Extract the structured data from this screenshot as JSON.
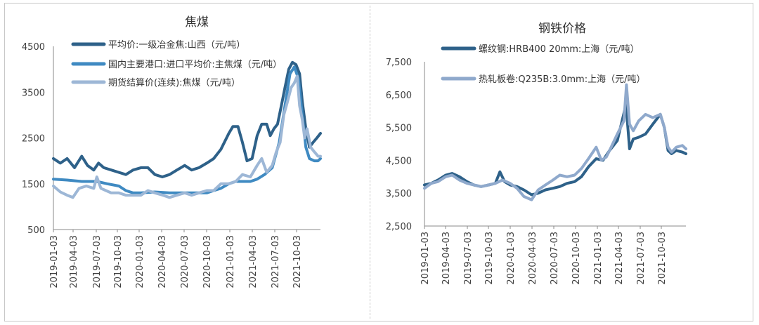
{
  "chart_data": [
    {
      "type": "line",
      "title": "焦煤",
      "ylim": [
        500,
        4500
      ],
      "y_ticks": [
        "4500",
        "3500",
        "2500",
        "1500",
        "500"
      ],
      "x_ticks": [
        "2019-01-03",
        "2019-04-03",
        "2019-07-03",
        "2019-10-03",
        "2020-01-03",
        "2020-04-03",
        "2020-07-03",
        "2020-10-03",
        "2021-01-03",
        "2021-04-03",
        "2021-07-03",
        "2021-10-03"
      ],
      "x_range": [
        "2019-01-03",
        "2022-01-20"
      ],
      "legend_position": "top-left",
      "series": [
        {
          "name": "平均价:一级冶金焦:山西（元/吨）",
          "color": "#2e6189",
          "points": [
            [
              "2019-01-03",
              2050
            ],
            [
              "2019-02-01",
              1950
            ],
            [
              "2019-03-01",
              2050
            ],
            [
              "2019-04-01",
              1850
            ],
            [
              "2019-05-01",
              2100
            ],
            [
              "2019-05-25",
              1900
            ],
            [
              "2019-06-20",
              1800
            ],
            [
              "2019-07-10",
              1950
            ],
            [
              "2019-08-01",
              1850
            ],
            [
              "2019-09-01",
              1800
            ],
            [
              "2019-10-01",
              1750
            ],
            [
              "2019-11-01",
              1700
            ],
            [
              "2019-12-01",
              1800
            ],
            [
              "2020-01-03",
              1850
            ],
            [
              "2020-02-01",
              1850
            ],
            [
              "2020-03-01",
              1700
            ],
            [
              "2020-04-01",
              1650
            ],
            [
              "2020-05-01",
              1700
            ],
            [
              "2020-06-01",
              1800
            ],
            [
              "2020-07-03",
              1900
            ],
            [
              "2020-08-01",
              1800
            ],
            [
              "2020-09-01",
              1850
            ],
            [
              "2020-10-03",
              1950
            ],
            [
              "2020-11-01",
              2050
            ],
            [
              "2020-12-01",
              2250
            ],
            [
              "2021-01-03",
              2600
            ],
            [
              "2021-01-20",
              2750
            ],
            [
              "2021-02-10",
              2750
            ],
            [
              "2021-03-01",
              2400
            ],
            [
              "2021-03-20",
              2000
            ],
            [
              "2021-04-10",
              2050
            ],
            [
              "2021-05-01",
              2550
            ],
            [
              "2021-05-20",
              2800
            ],
            [
              "2021-06-10",
              2800
            ],
            [
              "2021-06-25",
              2550
            ],
            [
              "2021-07-10",
              2700
            ],
            [
              "2021-07-25",
              2800
            ],
            [
              "2021-08-10",
              3200
            ],
            [
              "2021-08-25",
              3600
            ],
            [
              "2021-09-10",
              4000
            ],
            [
              "2021-09-25",
              4150
            ],
            [
              "2021-10-10",
              4100
            ],
            [
              "2021-10-25",
              3900
            ],
            [
              "2021-11-05",
              3300
            ],
            [
              "2021-11-20",
              2700
            ],
            [
              "2021-12-05",
              2300
            ],
            [
              "2021-12-20",
              2400
            ],
            [
              "2022-01-05",
              2500
            ],
            [
              "2022-01-20",
              2600
            ]
          ]
        },
        {
          "name": "国内主要港口:进口平均价:主焦煤（元/吨）",
          "color": "#3f8ac2",
          "points": [
            [
              "2019-01-03",
              1600
            ],
            [
              "2019-03-01",
              1580
            ],
            [
              "2019-05-01",
              1550
            ],
            [
              "2019-07-03",
              1550
            ],
            [
              "2019-08-15",
              1500
            ],
            [
              "2019-10-03",
              1450
            ],
            [
              "2019-11-01",
              1350
            ],
            [
              "2019-12-01",
              1300
            ],
            [
              "2020-01-03",
              1300
            ],
            [
              "2020-03-01",
              1320
            ],
            [
              "2020-05-01",
              1300
            ],
            [
              "2020-07-03",
              1300
            ],
            [
              "2020-09-01",
              1300
            ],
            [
              "2020-10-03",
              1300
            ],
            [
              "2020-11-01",
              1350
            ],
            [
              "2020-12-01",
              1400
            ],
            [
              "2021-01-03",
              1500
            ],
            [
              "2021-02-01",
              1550
            ],
            [
              "2021-03-01",
              1550
            ],
            [
              "2021-04-03",
              1550
            ],
            [
              "2021-05-01",
              1600
            ],
            [
              "2021-06-01",
              1700
            ],
            [
              "2021-07-03",
              1850
            ],
            [
              "2021-08-01",
              2400
            ],
            [
              "2021-08-25",
              3200
            ],
            [
              "2021-09-15",
              3900
            ],
            [
              "2021-10-03",
              4050
            ],
            [
              "2021-10-20",
              3800
            ],
            [
              "2021-11-05",
              3000
            ],
            [
              "2021-11-20",
              2300
            ],
            [
              "2021-12-05",
              2050
            ],
            [
              "2021-12-25",
              2000
            ],
            [
              "2022-01-10",
              2000
            ],
            [
              "2022-01-20",
              2050
            ]
          ]
        },
        {
          "name": "期货结算价(连续):焦煤（元/吨）",
          "color": "#9db7d6",
          "points": [
            [
              "2019-01-03",
              1450
            ],
            [
              "2019-02-01",
              1320
            ],
            [
              "2019-03-01",
              1250
            ],
            [
              "2019-03-25",
              1200
            ],
            [
              "2019-04-20",
              1400
            ],
            [
              "2019-05-20",
              1450
            ],
            [
              "2019-06-20",
              1400
            ],
            [
              "2019-07-03",
              1650
            ],
            [
              "2019-07-20",
              1400
            ],
            [
              "2019-08-10",
              1350
            ],
            [
              "2019-09-01",
              1300
            ],
            [
              "2019-10-03",
              1300
            ],
            [
              "2019-11-01",
              1250
            ],
            [
              "2019-12-01",
              1250
            ],
            [
              "2020-01-03",
              1250
            ],
            [
              "2020-02-01",
              1350
            ],
            [
              "2020-03-01",
              1300
            ],
            [
              "2020-04-03",
              1250
            ],
            [
              "2020-05-01",
              1200
            ],
            [
              "2020-06-01",
              1250
            ],
            [
              "2020-07-03",
              1300
            ],
            [
              "2020-08-01",
              1250
            ],
            [
              "2020-09-01",
              1300
            ],
            [
              "2020-10-03",
              1350
            ],
            [
              "2020-11-01",
              1350
            ],
            [
              "2020-12-01",
              1500
            ],
            [
              "2021-01-03",
              1500
            ],
            [
              "2021-02-01",
              1550
            ],
            [
              "2021-03-01",
              1700
            ],
            [
              "2021-04-03",
              1650
            ],
            [
              "2021-05-01",
              1900
            ],
            [
              "2021-05-20",
              2050
            ],
            [
              "2021-06-10",
              1750
            ],
            [
              "2021-07-03",
              1900
            ],
            [
              "2021-07-20",
              2200
            ],
            [
              "2021-08-05",
              2400
            ],
            [
              "2021-08-20",
              3000
            ],
            [
              "2021-09-05",
              3300
            ],
            [
              "2021-09-20",
              3600
            ],
            [
              "2021-10-03",
              3700
            ],
            [
              "2021-10-15",
              3850
            ],
            [
              "2021-10-25",
              3200
            ],
            [
              "2021-11-05",
              2900
            ],
            [
              "2021-11-15",
              2500
            ],
            [
              "2021-11-25",
              2700
            ],
            [
              "2021-12-10",
              2300
            ],
            [
              "2021-12-25",
              2200
            ],
            [
              "2022-01-10",
              2100
            ],
            [
              "2022-01-20",
              2100
            ]
          ]
        }
      ]
    },
    {
      "type": "line",
      "title": "钢铁价格",
      "ylim": [
        2500,
        7500
      ],
      "y_ticks": [
        "7,500",
        "6,500",
        "5,500",
        "4,500",
        "3,500",
        "2,500"
      ],
      "x_ticks": [
        "2019-01-03",
        "2019-04-03",
        "2019-07-03",
        "2019-10-03",
        "2020-01-03",
        "2020-04-03",
        "2020-07-03",
        "2020-10-03",
        "2021-01-03",
        "2021-04-03",
        "2021-07-03",
        "2021-10-03"
      ],
      "x_range": [
        "2019-01-03",
        "2022-01-20"
      ],
      "legend_position": "top-left",
      "series": [
        {
          "name": "螺纹钢:HRB400 20mm:上海（元/吨）",
          "color": "#2e6189",
          "points": [
            [
              "2019-01-03",
              3750
            ],
            [
              "2019-02-01",
              3800
            ],
            [
              "2019-03-01",
              3900
            ],
            [
              "2019-04-03",
              4050
            ],
            [
              "2019-05-01",
              4100
            ],
            [
              "2019-06-01",
              4000
            ],
            [
              "2019-07-03",
              3850
            ],
            [
              "2019-08-01",
              3750
            ],
            [
              "2019-09-01",
              3700
            ],
            [
              "2019-10-03",
              3750
            ],
            [
              "2019-11-01",
              3800
            ],
            [
              "2019-11-20",
              4150
            ],
            [
              "2019-12-10",
              3850
            ],
            [
              "2020-01-03",
              3750
            ],
            [
              "2020-02-01",
              3700
            ],
            [
              "2020-03-01",
              3600
            ],
            [
              "2020-04-03",
              3450
            ],
            [
              "2020-05-01",
              3500
            ],
            [
              "2020-06-01",
              3600
            ],
            [
              "2020-07-03",
              3650
            ],
            [
              "2020-08-01",
              3700
            ],
            [
              "2020-09-01",
              3800
            ],
            [
              "2020-10-03",
              3850
            ],
            [
              "2020-11-01",
              4000
            ],
            [
              "2020-12-01",
              4300
            ],
            [
              "2021-01-03",
              4550
            ],
            [
              "2021-02-01",
              4500
            ],
            [
              "2021-03-01",
              4800
            ],
            [
              "2021-04-03",
              5100
            ],
            [
              "2021-05-10",
              6200
            ],
            [
              "2021-05-25",
              4850
            ],
            [
              "2021-06-10",
              5150
            ],
            [
              "2021-07-03",
              5200
            ],
            [
              "2021-08-01",
              5300
            ],
            [
              "2021-09-01",
              5600
            ],
            [
              "2021-10-03",
              5900
            ],
            [
              "2021-10-20",
              5500
            ],
            [
              "2021-11-05",
              4800
            ],
            [
              "2021-11-20",
              4700
            ],
            [
              "2021-12-10",
              4800
            ],
            [
              "2022-01-05",
              4750
            ],
            [
              "2022-01-20",
              4700
            ]
          ]
        },
        {
          "name": "热轧板卷:Q235B:3.0mm:上海（元/吨）",
          "color": "#8fa9cc",
          "points": [
            [
              "2019-01-03",
              3650
            ],
            [
              "2019-02-01",
              3800
            ],
            [
              "2019-03-01",
              3850
            ],
            [
              "2019-04-03",
              4000
            ],
            [
              "2019-05-01",
              4050
            ],
            [
              "2019-06-01",
              3900
            ],
            [
              "2019-07-03",
              3800
            ],
            [
              "2019-08-01",
              3750
            ],
            [
              "2019-09-01",
              3700
            ],
            [
              "2019-10-03",
              3750
            ],
            [
              "2019-11-01",
              3800
            ],
            [
              "2019-12-01",
              3900
            ],
            [
              "2020-01-03",
              3800
            ],
            [
              "2020-02-01",
              3650
            ],
            [
              "2020-03-01",
              3400
            ],
            [
              "2020-04-03",
              3300
            ],
            [
              "2020-05-01",
              3600
            ],
            [
              "2020-06-01",
              3750
            ],
            [
              "2020-07-03",
              3900
            ],
            [
              "2020-08-01",
              4050
            ],
            [
              "2020-09-01",
              4000
            ],
            [
              "2020-10-03",
              4050
            ],
            [
              "2020-11-01",
              4250
            ],
            [
              "2020-12-01",
              4550
            ],
            [
              "2021-01-03",
              4900
            ],
            [
              "2021-01-25",
              4500
            ],
            [
              "2021-02-15",
              4600
            ],
            [
              "2021-03-01",
              4800
            ],
            [
              "2021-04-03",
              5300
            ],
            [
              "2021-05-01",
              5700
            ],
            [
              "2021-05-12",
              6800
            ],
            [
              "2021-05-25",
              5600
            ],
            [
              "2021-06-10",
              5400
            ],
            [
              "2021-07-03",
              5700
            ],
            [
              "2021-08-01",
              5900
            ],
            [
              "2021-09-01",
              5800
            ],
            [
              "2021-10-03",
              5900
            ],
            [
              "2021-10-20",
              5500
            ],
            [
              "2021-11-05",
              4900
            ],
            [
              "2021-11-20",
              4750
            ],
            [
              "2021-12-10",
              4900
            ],
            [
              "2022-01-05",
              4950
            ],
            [
              "2022-01-20",
              4850
            ]
          ]
        }
      ]
    }
  ]
}
